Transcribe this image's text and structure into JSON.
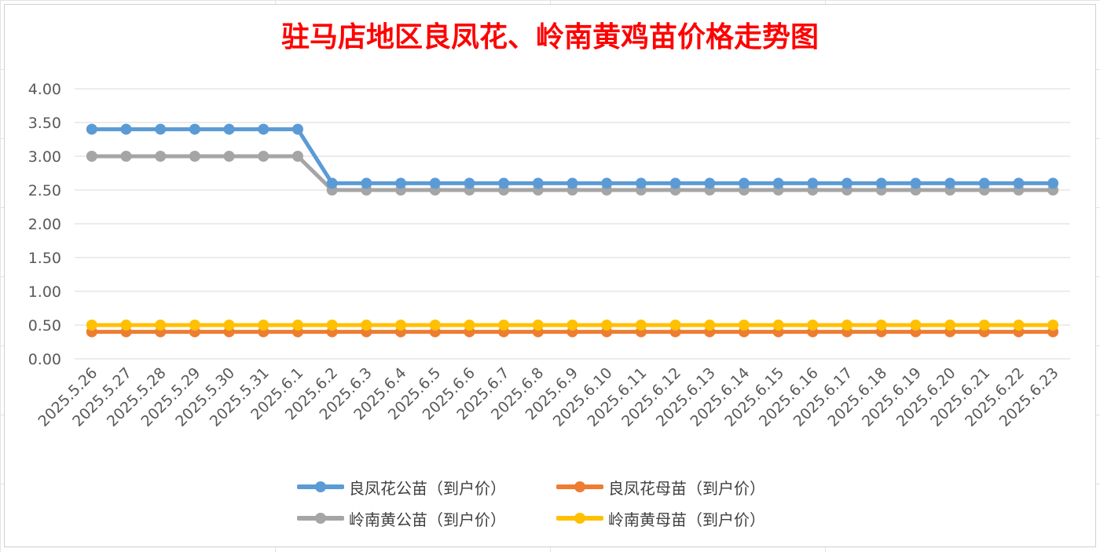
{
  "chart_data": {
    "type": "line",
    "title": "驻马店地区良凤花、岭南黄鸡苗价格走势图",
    "xlabel": "",
    "ylabel": "",
    "ylim": [
      0,
      4
    ],
    "yticks": [
      "0.00",
      "0.50",
      "1.00",
      "1.50",
      "2.00",
      "2.50",
      "3.00",
      "3.50",
      "4.00"
    ],
    "grid": true,
    "legend_position": "bottom",
    "categories": [
      "2025.5.26",
      "2025.5.27",
      "2025.5.28",
      "2025.5.29",
      "2025.5.30",
      "2025.5.31",
      "2025.6.1",
      "2025.6.2",
      "2025.6.3",
      "2025.6.4",
      "2025.6.5",
      "2025.6.6",
      "2025.6.7",
      "2025.6.8",
      "2025.6.9",
      "2025.6.10",
      "2025.6.11",
      "2025.6.12",
      "2025.6.13",
      "2025.6.14",
      "2025.6.15",
      "2025.6.16",
      "2025.6.17",
      "2025.6.18",
      "2025.6.19",
      "2025.6.20",
      "2025.6.21",
      "2025.6.22",
      "2025.6.23"
    ],
    "series": [
      {
        "name": "良凤花公苗（到户价）",
        "color": "#5b9bd5",
        "values": [
          3.4,
          3.4,
          3.4,
          3.4,
          3.4,
          3.4,
          3.4,
          2.6,
          2.6,
          2.6,
          2.6,
          2.6,
          2.6,
          2.6,
          2.6,
          2.6,
          2.6,
          2.6,
          2.6,
          2.6,
          2.6,
          2.6,
          2.6,
          2.6,
          2.6,
          2.6,
          2.6,
          2.6,
          2.6
        ]
      },
      {
        "name": "良凤花母苗（到户价）",
        "color": "#ed7d31",
        "values": [
          0.4,
          0.4,
          0.4,
          0.4,
          0.4,
          0.4,
          0.4,
          0.4,
          0.4,
          0.4,
          0.4,
          0.4,
          0.4,
          0.4,
          0.4,
          0.4,
          0.4,
          0.4,
          0.4,
          0.4,
          0.4,
          0.4,
          0.4,
          0.4,
          0.4,
          0.4,
          0.4,
          0.4,
          0.4
        ]
      },
      {
        "name": "岭南黄公苗（到户价）",
        "color": "#a5a5a5",
        "values": [
          3.0,
          3.0,
          3.0,
          3.0,
          3.0,
          3.0,
          3.0,
          2.5,
          2.5,
          2.5,
          2.5,
          2.5,
          2.5,
          2.5,
          2.5,
          2.5,
          2.5,
          2.5,
          2.5,
          2.5,
          2.5,
          2.5,
          2.5,
          2.5,
          2.5,
          2.5,
          2.5,
          2.5,
          2.5
        ]
      },
      {
        "name": "岭南黄母苗（到户价）",
        "color": "#ffc000",
        "values": [
          0.5,
          0.5,
          0.5,
          0.5,
          0.5,
          0.5,
          0.5,
          0.5,
          0.5,
          0.5,
          0.5,
          0.5,
          0.5,
          0.5,
          0.5,
          0.5,
          0.5,
          0.5,
          0.5,
          0.5,
          0.5,
          0.5,
          0.5,
          0.5,
          0.5,
          0.5,
          0.5,
          0.5,
          0.5
        ]
      }
    ]
  },
  "legend": {
    "rows": [
      [
        {
          "label": "良凤花公苗（到户价）",
          "color": "#5b9bd5"
        },
        {
          "label": "良凤花母苗（到户价）",
          "color": "#ed7d31"
        }
      ],
      [
        {
          "label": "岭南黄公苗（到户价）",
          "color": "#a5a5a5"
        },
        {
          "label": "岭南黄母苗（到户价）",
          "color": "#ffc000"
        }
      ]
    ]
  },
  "colors": {
    "title": "#ff0000",
    "grid": "#d9d9d9",
    "tick_text": "#595959"
  }
}
